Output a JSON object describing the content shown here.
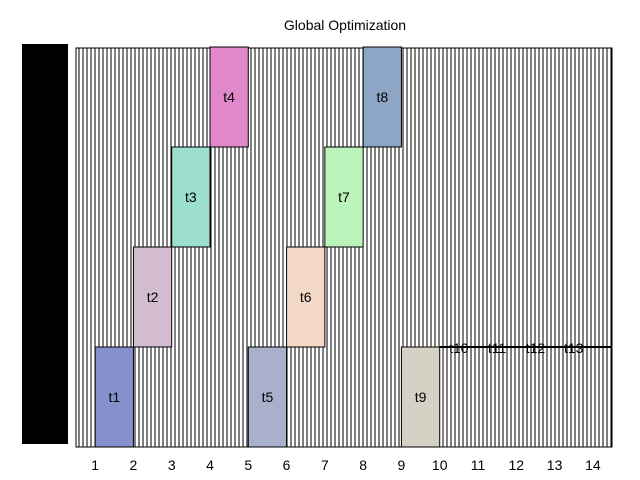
{
  "chart_data": {
    "type": "gantt",
    "title": "Global Optimization",
    "xlabel": "",
    "ylabel": "",
    "x_ticks": [
      "1",
      "2",
      "3",
      "4",
      "5",
      "6",
      "7",
      "8",
      "9",
      "10",
      "11",
      "12",
      "13",
      "14"
    ],
    "xlim": [
      0.5,
      14.5
    ],
    "rows": 4,
    "grid": "dense vertical hatching",
    "tasks": [
      {
        "name": "t1",
        "start": 1,
        "end": 2,
        "row": 0,
        "color": "#8591cc"
      },
      {
        "name": "t2",
        "start": 2,
        "end": 3,
        "row": 1,
        "color": "#d3bcd0"
      },
      {
        "name": "t3",
        "start": 3,
        "end": 4,
        "row": 2,
        "color": "#9ddfce"
      },
      {
        "name": "t4",
        "start": 4,
        "end": 5,
        "row": 3,
        "color": "#e188cb"
      },
      {
        "name": "t5",
        "start": 5,
        "end": 6,
        "row": 0,
        "color": "#a9b0cc"
      },
      {
        "name": "t6",
        "start": 6,
        "end": 7,
        "row": 1,
        "color": "#f4d8c8"
      },
      {
        "name": "t7",
        "start": 7,
        "end": 8,
        "row": 2,
        "color": "#bcf5bc"
      },
      {
        "name": "t8",
        "start": 8,
        "end": 9,
        "row": 3,
        "color": "#8ea6c6"
      },
      {
        "name": "t9",
        "start": 9,
        "end": 10,
        "row": 0,
        "color": "#d5d2c5"
      }
    ],
    "inline_labels": [
      "t10",
      "t11",
      "t12",
      "t13"
    ]
  }
}
